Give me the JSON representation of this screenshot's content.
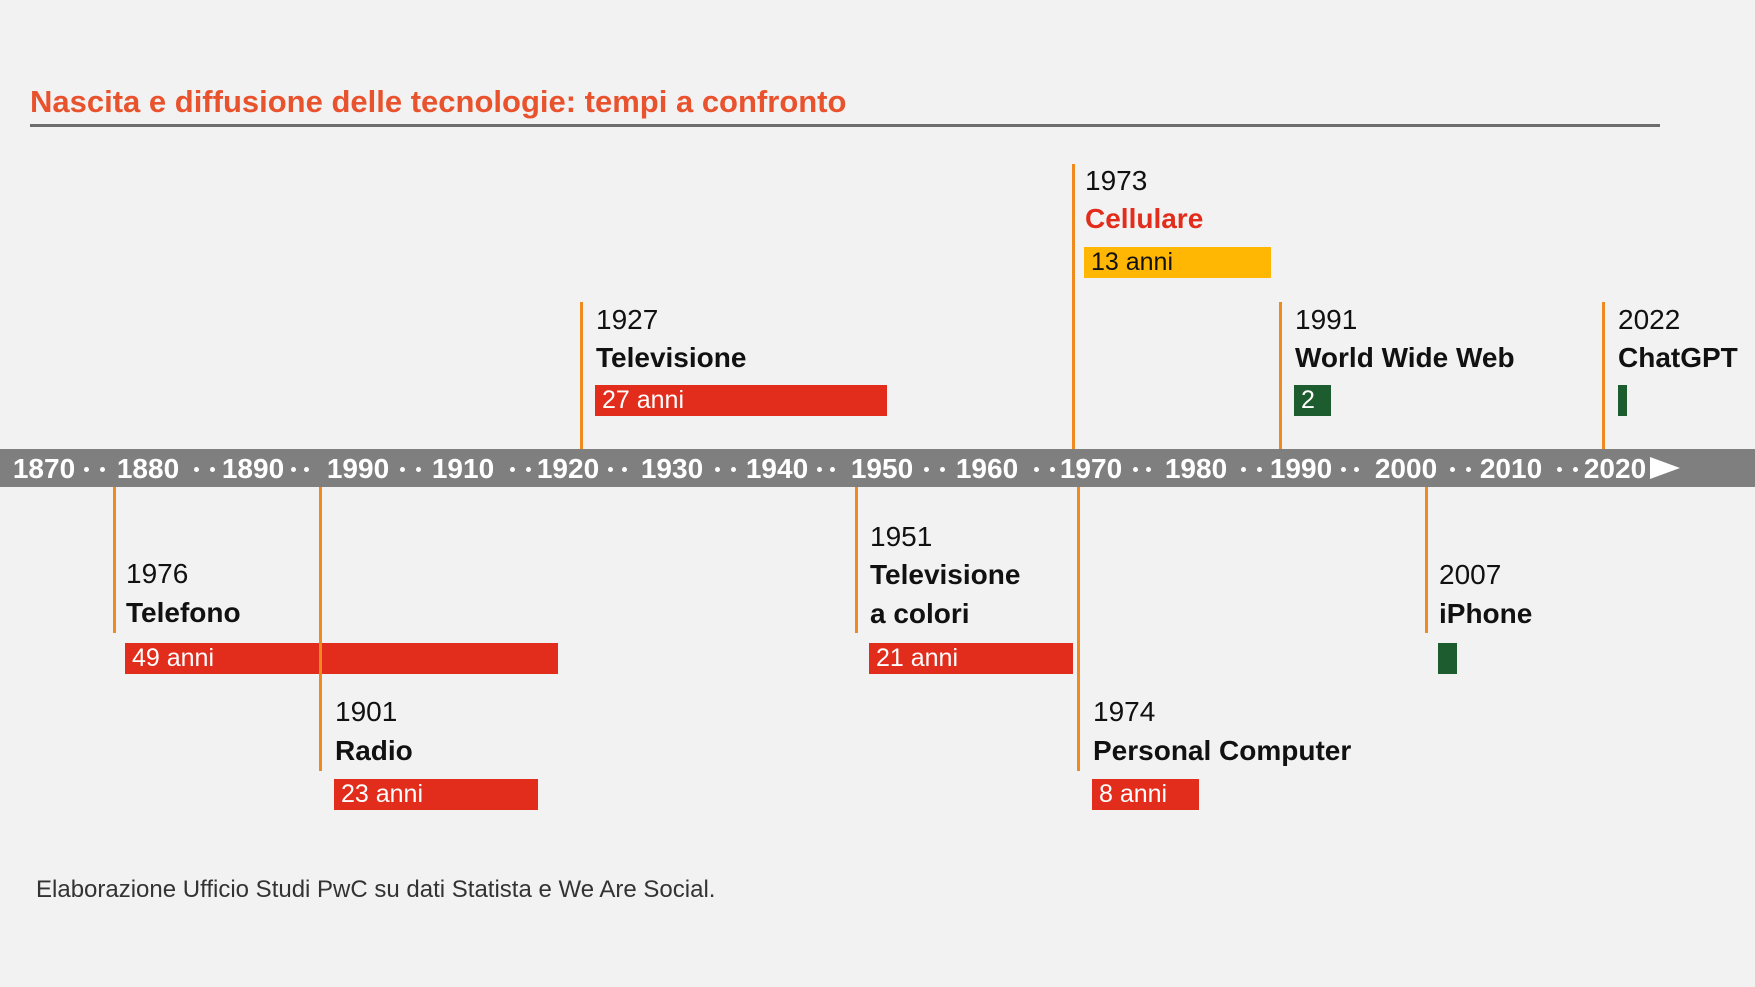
{
  "title": "Nascita e diffusione delle tecnologie: tempi a confronto",
  "axis_ticks": [
    "1870",
    "1880",
    "1890",
    "1990",
    "1910",
    "1920",
    "1930",
    "1940",
    "1950",
    "1960",
    "1970",
    "1980",
    "1990",
    "2000",
    "2010",
    "2020"
  ],
  "events": [
    {
      "id": "telefono",
      "year": "1976",
      "name": [
        "Telefono"
      ],
      "duration": "49 anni",
      "bar_color": "red",
      "highlight": false
    },
    {
      "id": "radio",
      "year": "1901",
      "name": [
        "Radio"
      ],
      "duration": "23 anni",
      "bar_color": "red",
      "highlight": false
    },
    {
      "id": "televisione",
      "year": "1927",
      "name": [
        "Televisione"
      ],
      "duration": "27 anni",
      "bar_color": "red",
      "highlight": false
    },
    {
      "id": "tv-colori",
      "year": "1951",
      "name": [
        "Televisione",
        "a colori"
      ],
      "duration": "21 anni",
      "bar_color": "red",
      "highlight": false
    },
    {
      "id": "cellulare",
      "year": "1973",
      "name": [
        "Cellulare"
      ],
      "duration": "13 anni",
      "bar_color": "yellow",
      "highlight": true
    },
    {
      "id": "pc",
      "year": "1974",
      "name": [
        "Personal Computer"
      ],
      "duration": "8 anni",
      "bar_color": "red",
      "highlight": false
    },
    {
      "id": "www",
      "year": "1991",
      "name": [
        "World Wide Web"
      ],
      "duration": "2",
      "bar_color": "green",
      "highlight": false
    },
    {
      "id": "iphone",
      "year": "2007",
      "name": [
        "iPhone"
      ],
      "duration": "",
      "bar_color": "green",
      "highlight": false
    },
    {
      "id": "chatgpt",
      "year": "2022",
      "name": [
        "ChatGPT"
      ],
      "duration": "",
      "bar_color": "green",
      "highlight": false
    }
  ],
  "colors": {
    "title": "#e8532e",
    "axis": "#7f7f7f",
    "connector": "#ef8a1e",
    "bar_red": "#e32d1c",
    "bar_yellow": "#ffb703",
    "bar_green": "#1d5c2e"
  },
  "source": "Elaborazione Ufficio Studi PwC su dati Statista e We Are Social."
}
